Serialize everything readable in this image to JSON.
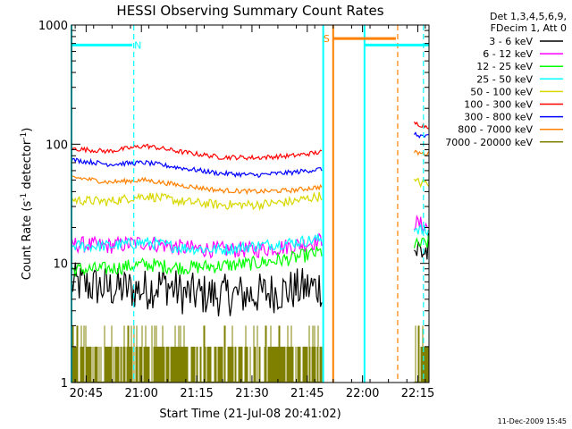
{
  "chart_data": {
    "type": "line",
    "title": "HESSI Observing Summary Count Rates",
    "xlabel": "Start Time (21-Jul-08 20:41:02)",
    "ylabel_main": "Count Rate (s",
    "ylabel_sup1": "-1",
    "ylabel_mid": " detector",
    "ylabel_sup2": "-1",
    "ylabel_end": ")",
    "y_scale": "log",
    "ylim": [
      1,
      1000
    ],
    "xlim_minutes": [
      0,
      97
    ],
    "x_unit": "minutes since 20:41:02",
    "x_ticks": [
      {
        "label": "20:45",
        "value": 3.97
      },
      {
        "label": "21:00",
        "value": 18.97
      },
      {
        "label": "21:15",
        "value": 33.97
      },
      {
        "label": "21:30",
        "value": 48.97
      },
      {
        "label": "21:45",
        "value": 63.97
      },
      {
        "label": "22:00",
        "value": 78.97
      },
      {
        "label": "22:15",
        "value": 93.97
      }
    ],
    "y_ticks": [
      {
        "label": "1",
        "value": 1
      },
      {
        "label": "10",
        "value": 10
      },
      {
        "label": "100",
        "value": 100
      },
      {
        "label": "1000",
        "value": 1000
      }
    ],
    "legend_title_line1": "Det 1,3,4,5,6,9,",
    "legend_title_line2": "FDecim 1, Att 0",
    "legend_placement": "right",
    "series": [
      {
        "name": "3 - 6 keV",
        "color": "#000000",
        "segA": [
          [
            0,
            6.8
          ],
          [
            10,
            6.2
          ],
          [
            20,
            6.0
          ],
          [
            25,
            6.8
          ],
          [
            30,
            5.6
          ],
          [
            40,
            5.4
          ],
          [
            50,
            5.5
          ],
          [
            60,
            6.0
          ],
          [
            68,
            6.4
          ]
        ],
        "segB": [
          [
            93,
            13
          ],
          [
            97,
            12.5
          ]
        ],
        "noise": 0.18
      },
      {
        "name": "6 - 12 keV",
        "color": "#ff00ff",
        "segA": [
          [
            0,
            14.5
          ],
          [
            10,
            14.0
          ],
          [
            20,
            15.0
          ],
          [
            30,
            13.5
          ],
          [
            40,
            13.0
          ],
          [
            50,
            13.0
          ],
          [
            60,
            14.0
          ],
          [
            68,
            15.5
          ]
        ],
        "segB": [
          [
            93,
            22
          ],
          [
            97,
            20
          ]
        ],
        "noise": 0.07
      },
      {
        "name": "12 - 25 keV",
        "color": "#00ff00",
        "segA": [
          [
            0,
            8.8
          ],
          [
            10,
            9.0
          ],
          [
            20,
            9.8
          ],
          [
            30,
            9.2
          ],
          [
            40,
            9.5
          ],
          [
            50,
            10.0
          ],
          [
            60,
            11.0
          ],
          [
            68,
            12.5
          ]
        ],
        "segB": [
          [
            93,
            14
          ],
          [
            97,
            15
          ]
        ],
        "noise": 0.06
      },
      {
        "name": "25 - 50 keV",
        "color": "#00ffff",
        "segA": [
          [
            0,
            14.0
          ],
          [
            10,
            14.0
          ],
          [
            20,
            15.0
          ],
          [
            30,
            13.5
          ],
          [
            40,
            13.0
          ],
          [
            50,
            14.0
          ],
          [
            60,
            15.0
          ],
          [
            68,
            16.0
          ]
        ],
        "segB": [
          [
            93,
            20
          ],
          [
            97,
            18
          ]
        ],
        "noise": 0.05
      },
      {
        "name": "50 - 100 keV",
        "color": "#d8d800",
        "segA": [
          [
            0,
            34
          ],
          [
            10,
            33
          ],
          [
            20,
            37
          ],
          [
            30,
            33
          ],
          [
            40,
            31
          ],
          [
            50,
            31
          ],
          [
            60,
            33
          ],
          [
            68,
            37
          ]
        ],
        "segB": [
          [
            93,
            48
          ],
          [
            97,
            47
          ]
        ],
        "noise": 0.04
      },
      {
        "name": "100 - 300 keV",
        "color": "#ff0000",
        "segA": [
          [
            0,
            92
          ],
          [
            10,
            87
          ],
          [
            20,
            97
          ],
          [
            30,
            86
          ],
          [
            40,
            78
          ],
          [
            50,
            77
          ],
          [
            60,
            80
          ],
          [
            68,
            86
          ]
        ],
        "segB": [
          [
            93,
            150
          ],
          [
            97,
            140
          ]
        ],
        "noise": 0.02
      },
      {
        "name": "300 - 800 keV",
        "color": "#0000ff",
        "segA": [
          [
            0,
            74
          ],
          [
            10,
            68
          ],
          [
            20,
            70
          ],
          [
            30,
            63
          ],
          [
            40,
            57
          ],
          [
            50,
            55
          ],
          [
            60,
            58
          ],
          [
            68,
            62
          ]
        ],
        "segB": [
          [
            93,
            120
          ],
          [
            97,
            115
          ]
        ],
        "noise": 0.02
      },
      {
        "name": "800 - 7000 keV",
        "color": "#ff8000",
        "segA": [
          [
            0,
            53
          ],
          [
            10,
            48
          ],
          [
            20,
            50
          ],
          [
            30,
            45
          ],
          [
            40,
            41
          ],
          [
            50,
            40
          ],
          [
            60,
            41
          ],
          [
            68,
            44
          ]
        ],
        "segB": [
          [
            93,
            85
          ],
          [
            97,
            83
          ]
        ],
        "noise": 0.02
      },
      {
        "name": "7000 - 20000 keV",
        "color": "#808000",
        "segA": [
          [
            0,
            1.5
          ],
          [
            68,
            1.5
          ]
        ],
        "segB": [
          [
            93,
            1.5
          ],
          [
            97,
            1.5
          ]
        ],
        "noise": 0,
        "style": "bars"
      }
    ],
    "flags": [
      {
        "label": "N",
        "color": "#00ffff",
        "x": [
          0,
          16.5
        ],
        "y": 680,
        "label_x": 18
      },
      {
        "label": "S",
        "color": "#ff8000",
        "x": [
          71,
          88
        ],
        "y": 770,
        "label_x": 69.2
      },
      {
        "label": "",
        "color": "#00ffff",
        "x": [
          79.5,
          97
        ],
        "y": 680
      }
    ],
    "vlines": [
      {
        "x": 0,
        "color": "#00ffff",
        "style": "solid"
      },
      {
        "x": 16.9,
        "color": "#00ffff",
        "style": "dashed"
      },
      {
        "x": 68.3,
        "color": "#00ffff",
        "style": "solid"
      },
      {
        "x": 71,
        "color": "#ff8000",
        "style": "solid"
      },
      {
        "x": 79.5,
        "color": "#00ffff",
        "style": "solid"
      },
      {
        "x": 88.5,
        "color": "#ff8000",
        "style": "dashed"
      },
      {
        "x": 95.5,
        "color": "#00ffff",
        "style": "dashed"
      }
    ]
  },
  "footer": {
    "date": "11-Dec-2009 15:45"
  }
}
